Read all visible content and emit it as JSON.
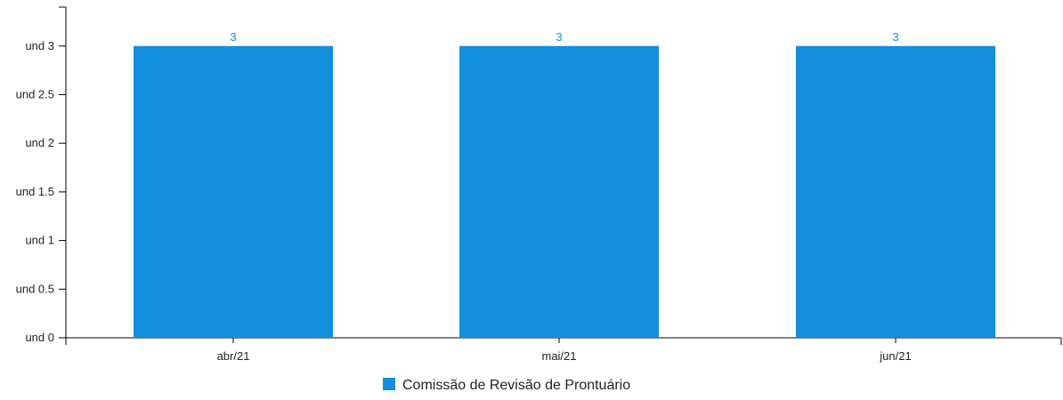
{
  "chart_data": {
    "type": "bar",
    "categories": [
      "abr/21",
      "mai/21",
      "jun/21"
    ],
    "series": [
      {
        "name": "Comissão de Revisão de Prontuário",
        "values": [
          3,
          3,
          3
        ],
        "color": "#138fdd"
      }
    ],
    "data_labels": [
      "3",
      "3",
      "3"
    ],
    "ylim": [
      0,
      3.4
    ],
    "yticks": [
      0,
      0.5,
      1,
      1.5,
      2,
      2.5,
      3
    ],
    "ytick_labels": [
      "und 0",
      "und 0.5",
      "und 1",
      "und 1.5",
      "und 2",
      "und 2.5",
      "und 3"
    ],
    "grid": false,
    "legend_position": "bottom-center"
  }
}
